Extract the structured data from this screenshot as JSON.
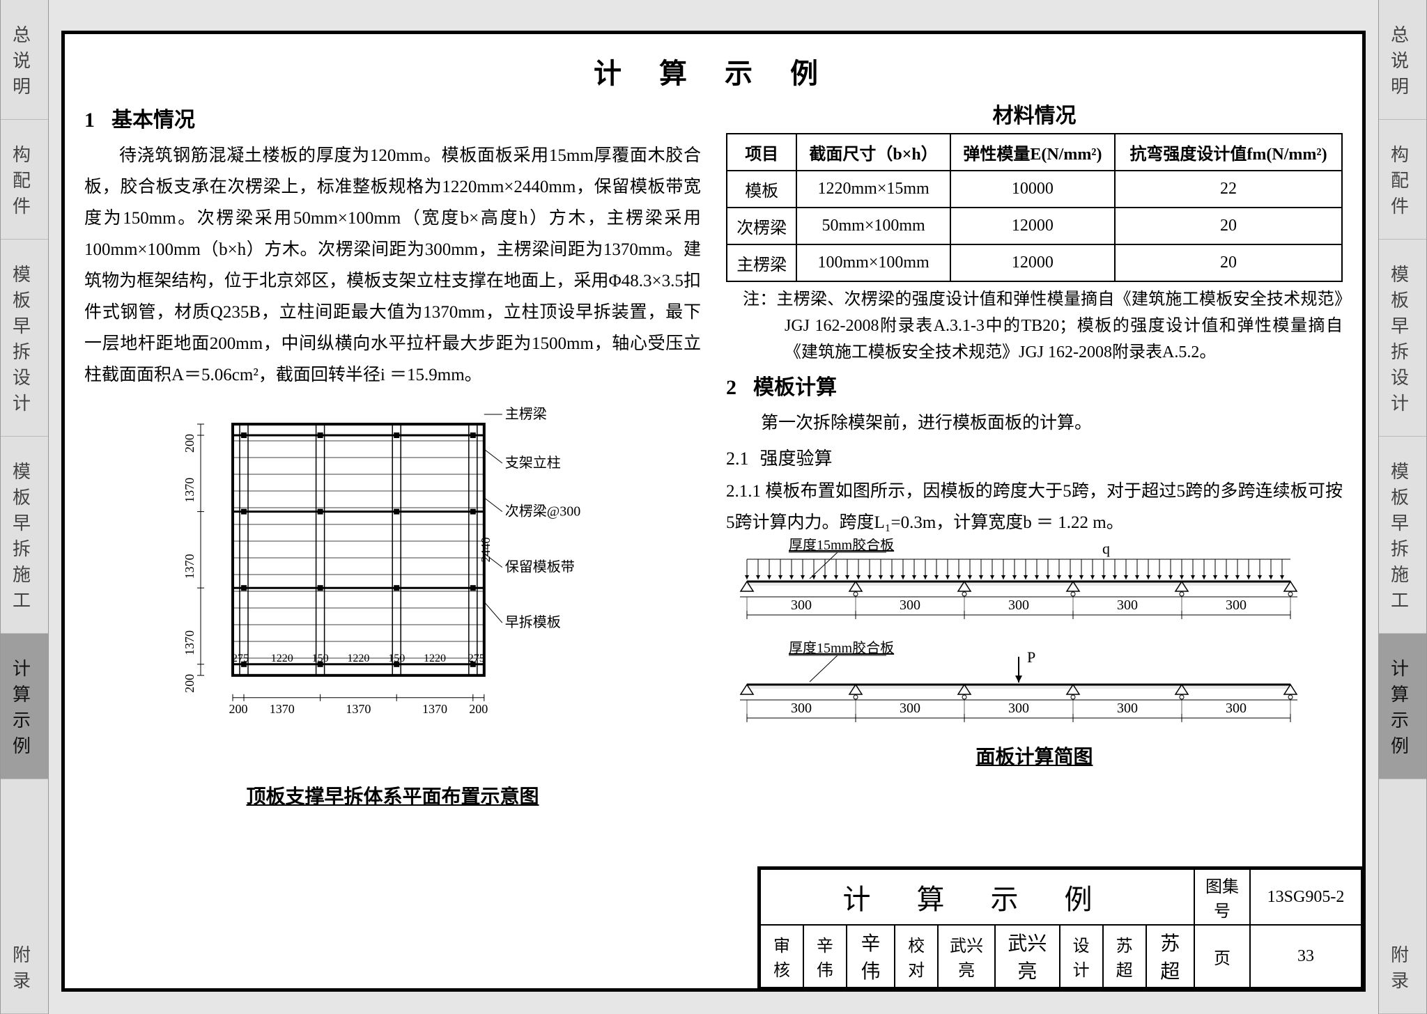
{
  "sideTabs": [
    {
      "id": "overview",
      "label": "总说明",
      "active": false
    },
    {
      "id": "components",
      "label": "构配件",
      "active": false
    },
    {
      "id": "design",
      "label": "模板早拆设计",
      "active": false
    },
    {
      "id": "construction",
      "label": "模板早拆施工",
      "active": false
    },
    {
      "id": "example",
      "label": "计算示例",
      "active": true
    },
    {
      "id": "appendix",
      "label": "附录",
      "active": false
    }
  ],
  "pageTitle": "计 算 示 例",
  "section1": {
    "num": "1",
    "title": "基本情况",
    "body": "待浇筑钢筋混凝土楼板的厚度为120mm。模板面板采用15mm厚覆面木胶合板，胶合板支承在次楞梁上，标准整板规格为1220mm×2440mm，保留模板带宽度为150mm。次楞梁采用50mm×100mm（宽度b×高度h）方木，主楞梁采用100mm×100mm（b×h）方木。次楞梁间距为300mm，主楞梁间距为1370mm。建筑物为框架结构，位于北京郊区，模板支架立柱支撑在地面上，采用Φ48.3×3.5扣件式钢管，材质Q235B，立柱间距最大值为1370mm，立柱顶设早拆装置，最下一层地杆距地面200mm，中间纵横向水平拉杆最大步距为1500mm，轴心受压立柱截面面积A＝5.06cm²，截面回转半径i ＝15.9mm。"
  },
  "plan": {
    "caption": "顶板支撑早拆体系平面布置示意图",
    "labels": {
      "main_beam": "主楞梁",
      "post": "支架立柱",
      "sub_beam_at_300": "次楞梁@300",
      "retained_strip": "保留模板带",
      "early_removal": "早拆模板"
    },
    "vdims_left": [
      "200",
      "1370",
      "1370",
      "1370",
      "200"
    ],
    "vdim_right": "2440",
    "hdims_bottom": [
      "200",
      "1370",
      "1370",
      "1370",
      "200"
    ],
    "hdims_inside": [
      "275",
      "1220",
      "150",
      "1220",
      "150",
      "1220",
      "275"
    ],
    "line_color": "#000",
    "grid_color": "#000"
  },
  "materialTable": {
    "heading": "材料情况",
    "columns": [
      "项目",
      "截面尺寸（b×h）",
      "弹性模量E(N/mm²)",
      "抗弯强度设计值fm(N/mm²)"
    ],
    "rows": [
      [
        "模板",
        "1220mm×15mm",
        "10000",
        "22"
      ],
      [
        "次楞梁",
        "50mm×100mm",
        "12000",
        "20"
      ],
      [
        "主楞梁",
        "100mm×100mm",
        "12000",
        "20"
      ]
    ]
  },
  "note": "注：主楞梁、次楞梁的强度设计值和弹性模量摘自《建筑施工模板安全技术规范》JGJ 162-2008附录表A.3.1-3中的TB20；模板的强度设计值和弹性模量摘自《建筑施工模板安全技术规范》JGJ 162-2008附录表A.5.2。",
  "section2": {
    "num": "2",
    "title": "模板计算",
    "body": "第一次拆除模架前，进行模板面板的计算。"
  },
  "s21": {
    "num": "2.1",
    "title": "强度验算",
    "body": "2.1.1 模板布置如图所示，因模板的跨度大于5跨，对于超过5跨的多跨连续板可按5跨计算内力。跨度L₁=0.3m，计算宽度b ＝ 1.22 m。"
  },
  "beam": {
    "caption": "面板计算简图",
    "spans": [
      "300",
      "300",
      "300",
      "300",
      "300"
    ],
    "label_q": "q",
    "label_P": "P",
    "label_thickness": "厚度15mm胶合板",
    "line_color": "#000",
    "hatch_color": "#000"
  },
  "titleBlock": {
    "title": "计 算 示 例",
    "sheetSetLabel": "图集号",
    "sheetSet": "13SG905-2",
    "pageLabel": "页",
    "page": "33",
    "roles": {
      "review_label": "审核",
      "review_name": "辛伟",
      "review_sig": "辛伟",
      "check_label": "校对",
      "check_name": "武兴亮",
      "check_sig": "武兴亮",
      "design_label": "设计",
      "design_name": "苏超",
      "design_sig": "苏超"
    }
  }
}
